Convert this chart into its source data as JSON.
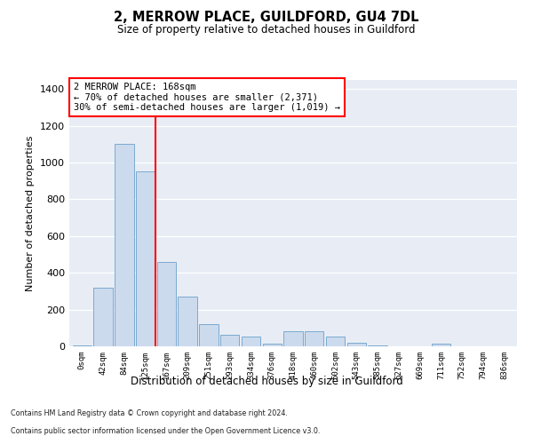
{
  "title": "2, MERROW PLACE, GUILDFORD, GU4 7DL",
  "subtitle": "Size of property relative to detached houses in Guildford",
  "xlabel": "Distribution of detached houses by size in Guildford",
  "ylabel": "Number of detached properties",
  "bar_color": "#ccdaed",
  "bar_edge_color": "#7aaad0",
  "background_color": "#e8edf5",
  "categories": [
    "0sqm",
    "42sqm",
    "84sqm",
    "125sqm",
    "167sqm",
    "209sqm",
    "251sqm",
    "293sqm",
    "334sqm",
    "376sqm",
    "418sqm",
    "460sqm",
    "502sqm",
    "543sqm",
    "585sqm",
    "627sqm",
    "669sqm",
    "711sqm",
    "752sqm",
    "794sqm",
    "836sqm"
  ],
  "values": [
    5,
    320,
    1100,
    950,
    460,
    270,
    120,
    65,
    55,
    15,
    80,
    80,
    55,
    20,
    5,
    2,
    2,
    15,
    2,
    1,
    2
  ],
  "ylim_max": 1450,
  "yticks": [
    0,
    200,
    400,
    600,
    800,
    1000,
    1200,
    1400
  ],
  "red_line_index": 4,
  "annotation_title": "2 MERROW PLACE: 168sqm",
  "annotation_line1": "← 70% of detached houses are smaller (2,371)",
  "annotation_line2": "30% of semi-detached houses are larger (1,019) →",
  "footer_line1": "Contains HM Land Registry data © Crown copyright and database right 2024.",
  "footer_line2": "Contains public sector information licensed under the Open Government Licence v3.0."
}
